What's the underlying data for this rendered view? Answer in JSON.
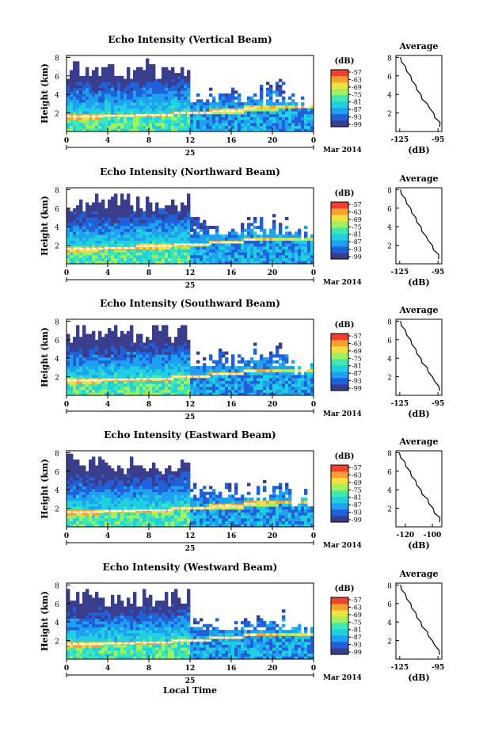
{
  "page": {
    "date_label": "Mar 2014",
    "day_label": "25",
    "xlabel": "Local Time",
    "ylabel": "Height (km)",
    "cbar_unit": "(dB)",
    "avg_title": "Average",
    "avg_xlabel": "(dB)"
  },
  "colorbar_ticks": [
    "-57",
    "-63",
    "-69",
    "-75",
    "-81",
    "-87",
    "-93",
    "-99"
  ],
  "colors": {
    "background": "#ffffff",
    "noise_floor": "#3a3d8c",
    "scale": [
      "#3a3d8c",
      "#2060d8",
      "#1fa0f0",
      "#20d0e0",
      "#40e8b0",
      "#a0f060",
      "#f0e040",
      "#f8a030",
      "#f04030"
    ]
  },
  "chart_data": [
    {
      "type": "heatmap",
      "title": "Echo Intensity (Vertical Beam)",
      "xlabel": "Local Time",
      "ylabel": "Height (km)",
      "x_ticks": [
        "0",
        "4",
        "8",
        "12",
        "16",
        "20",
        "0"
      ],
      "xlim": [
        0,
        24
      ],
      "ylim": [
        0,
        8.2
      ],
      "y_ticks": [
        "2",
        "4",
        "6",
        "8"
      ],
      "colorbar": {
        "label": "(dB)",
        "range": [
          -99,
          -57
        ]
      },
      "bright_layer_height_km": [
        1.6,
        1.7,
        1.8,
        2.0,
        2.2,
        2.5,
        2.6
      ],
      "average_profile": {
        "title": "Average",
        "xlabel": "(dB)",
        "x_ticks": [
          "-125",
          "-95"
        ],
        "xlim": [
          -128,
          -92
        ],
        "y_ticks": [
          "2",
          "4",
          "6",
          "8"
        ],
        "height_km": [
          0.5,
          1,
          1.5,
          2,
          2.5,
          3,
          3.5,
          4,
          4.5,
          5,
          5.5,
          6,
          6.5,
          7,
          7.5,
          8
        ],
        "db": [
          -93,
          -94,
          -97,
          -99,
          -101,
          -104,
          -107,
          -109,
          -111,
          -113,
          -115,
          -117,
          -119,
          -121,
          -123,
          -125
        ]
      }
    },
    {
      "type": "heatmap",
      "title": "Echo Intensity (Northward Beam)",
      "xlabel": "Local Time",
      "ylabel": "Height (km)",
      "x_ticks": [
        "0",
        "4",
        "8",
        "12",
        "16",
        "20",
        "0"
      ],
      "xlim": [
        0,
        24
      ],
      "ylim": [
        0,
        8.2
      ],
      "y_ticks": [
        "2",
        "4",
        "6",
        "8"
      ],
      "colorbar": {
        "label": "(dB)",
        "range": [
          -99,
          -57
        ]
      },
      "bright_layer_height_km": [
        1.6,
        1.7,
        1.9,
        2.1,
        2.3,
        2.6,
        2.7
      ],
      "average_profile": {
        "title": "Average",
        "xlabel": "(dB)",
        "x_ticks": [
          "-125",
          "-95"
        ],
        "xlim": [
          -128,
          -92
        ],
        "y_ticks": [
          "2",
          "4",
          "6",
          "8"
        ],
        "height_km": [
          0.5,
          1,
          1.5,
          2,
          2.5,
          3,
          3.5,
          4,
          4.5,
          5,
          5.5,
          6,
          6.5,
          7,
          7.5,
          8
        ],
        "db": [
          -94,
          -95,
          -98,
          -100,
          -102,
          -105,
          -107,
          -109,
          -111,
          -113,
          -115,
          -117,
          -119,
          -121,
          -123,
          -125
        ]
      }
    },
    {
      "type": "heatmap",
      "title": "Echo Intensity (Southward Beam)",
      "xlabel": "Local Time",
      "ylabel": "Height (km)",
      "x_ticks": [
        "0",
        "4",
        "8",
        "12",
        "16",
        "20",
        "0"
      ],
      "xlim": [
        0,
        24
      ],
      "ylim": [
        0,
        8.2
      ],
      "y_ticks": [
        "2",
        "4",
        "6",
        "8"
      ],
      "colorbar": {
        "label": "(dB)",
        "range": [
          -99,
          -57
        ]
      },
      "bright_layer_height_km": [
        1.6,
        1.7,
        1.8,
        2.0,
        2.3,
        2.6,
        2.7
      ],
      "average_profile": {
        "title": "Average",
        "xlabel": "(dB)",
        "x_ticks": [
          "-125",
          "-95"
        ],
        "xlim": [
          -128,
          -92
        ],
        "y_ticks": [
          "2",
          "4",
          "6",
          "8"
        ],
        "height_km": [
          0.5,
          1,
          1.5,
          2,
          2.5,
          3,
          3.5,
          4,
          4.5,
          5,
          5.5,
          6,
          6.5,
          7,
          7.5,
          8
        ],
        "db": [
          -93,
          -95,
          -97,
          -100,
          -102,
          -104,
          -107,
          -109,
          -111,
          -113,
          -115,
          -117,
          -119,
          -121,
          -123,
          -125
        ]
      }
    },
    {
      "type": "heatmap",
      "title": "Echo Intensity (Eastward Beam)",
      "xlabel": "Local Time",
      "ylabel": "Height (km)",
      "x_ticks": [
        "0",
        "4",
        "8",
        "12",
        "16",
        "20",
        "0"
      ],
      "xlim": [
        0,
        24
      ],
      "ylim": [
        0,
        8.2
      ],
      "y_ticks": [
        "2",
        "4",
        "6",
        "8"
      ],
      "colorbar": {
        "label": "(dB)",
        "range": [
          -99,
          -57
        ]
      },
      "bright_layer_height_km": [
        1.6,
        1.7,
        1.8,
        2.0,
        2.2,
        2.5,
        2.6
      ],
      "average_profile": {
        "title": "Average",
        "xlabel": "(dB)",
        "x_ticks": [
          "-120",
          "-100"
        ],
        "xlim": [
          -127,
          -93
        ],
        "y_ticks": [
          "2",
          "4",
          "6",
          "8"
        ],
        "height_km": [
          0.5,
          1,
          1.5,
          2,
          2.5,
          3,
          3.5,
          4,
          4.5,
          5,
          5.5,
          6,
          6.5,
          7,
          7.5,
          8
        ],
        "db": [
          -94,
          -95,
          -98,
          -100,
          -102,
          -104,
          -107,
          -109,
          -111,
          -113,
          -115,
          -117,
          -119,
          -121,
          -123,
          -125
        ]
      }
    },
    {
      "type": "heatmap",
      "title": "Echo Intensity (Westward Beam)",
      "xlabel": "Local Time",
      "ylabel": "Height (km)",
      "x_ticks": [
        "0",
        "4",
        "8",
        "12",
        "16",
        "20",
        "0"
      ],
      "xlim": [
        0,
        24
      ],
      "ylim": [
        0,
        8.2
      ],
      "y_ticks": [
        "2",
        "4",
        "6",
        "8"
      ],
      "colorbar": {
        "label": "(dB)",
        "range": [
          -99,
          -57
        ]
      },
      "bright_layer_height_km": [
        1.6,
        1.7,
        1.8,
        2.0,
        2.3,
        2.6,
        2.7
      ],
      "average_profile": {
        "title": "Average",
        "xlabel": "(dB)",
        "x_ticks": [
          "-125",
          "-95"
        ],
        "xlim": [
          -128,
          -92
        ],
        "y_ticks": [
          "2",
          "4",
          "6",
          "8"
        ],
        "height_km": [
          0.5,
          1,
          1.5,
          2,
          2.5,
          3,
          3.5,
          4,
          4.5,
          5,
          5.5,
          6,
          6.5,
          7,
          7.5,
          8
        ],
        "db": [
          -93,
          -95,
          -97,
          -100,
          -102,
          -104,
          -107,
          -109,
          -111,
          -113,
          -115,
          -117,
          -119,
          -121,
          -123,
          -125
        ]
      }
    }
  ]
}
